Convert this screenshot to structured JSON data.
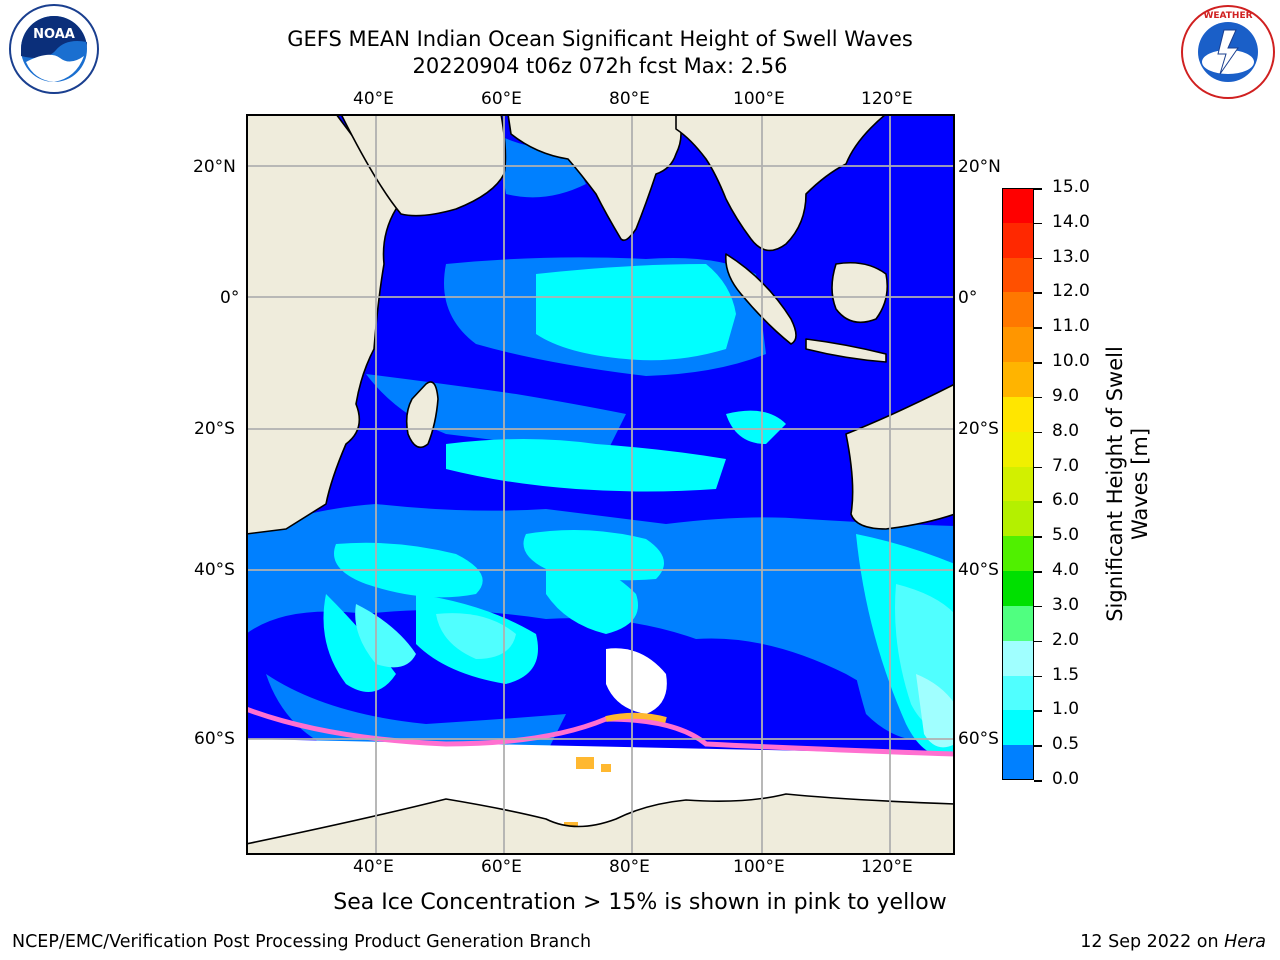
{
  "title": {
    "line1": "GEFS MEAN Indian Ocean Significant Height of Swell Waves",
    "line2": "20220904 t06z 072h fcst   Max: 2.56"
  },
  "logos": {
    "left": {
      "icon": "noaa-logo",
      "text": "NOAA"
    },
    "right": {
      "icon": "national-weather-service-logo",
      "text": "NATIONAL WEATHER SERVICE"
    }
  },
  "map": {
    "lon_labels_top": [
      "40°E",
      "60°E",
      "80°E",
      "100°E",
      "120°E"
    ],
    "lon_labels_bottom": [
      "40°E",
      "60°E",
      "80°E",
      "100°E",
      "120°E"
    ],
    "lat_labels_left": [
      "20°N",
      "0°",
      "20°S",
      "40°S",
      "60°S"
    ],
    "lat_labels_right": [
      "20°N",
      "0°",
      "20°S",
      "40°S",
      "60°S"
    ],
    "colors": {
      "land": "#efecdc",
      "ice": "#ffffff",
      "grid": "#b0b0b0",
      "wave_0_0_5": "#0000ff",
      "wave_0_5_1_0": "#0080ff",
      "wave_1_0_1_5": "#00ffff",
      "wave_1_5_2_0": "#50ffff",
      "wave_2_0_3_0": "#a0ffff"
    }
  },
  "colorbar": {
    "title_line1": "Significant Height of Swell",
    "title_line2": "Waves [m]",
    "labels": [
      "15.0",
      "14.0",
      "13.0",
      "12.0",
      "11.0",
      "10.0",
      "9.0",
      "8.0",
      "7.0",
      "6.0",
      "5.0",
      "4.0",
      "3.0",
      "2.0",
      "1.5",
      "1.0",
      "0.5",
      "0.0"
    ],
    "colors": [
      "#ff0000",
      "#ff2800",
      "#ff5000",
      "#ff7800",
      "#ff9600",
      "#ffb400",
      "#ffe600",
      "#f0f000",
      "#d2f000",
      "#b4f000",
      "#50f000",
      "#00e000",
      "#50ff80",
      "#a0ffff",
      "#50ffff",
      "#00ffff",
      "#0080ff",
      "#0000ff"
    ]
  },
  "ice_note": "Sea Ice Concentration > 15% is shown in pink to yellow",
  "footer": {
    "left": "NCEP/EMC/Verification Post Processing Product Generation Branch",
    "right_prefix": "12 Sep 2022 on ",
    "right_machine": "Hera"
  }
}
